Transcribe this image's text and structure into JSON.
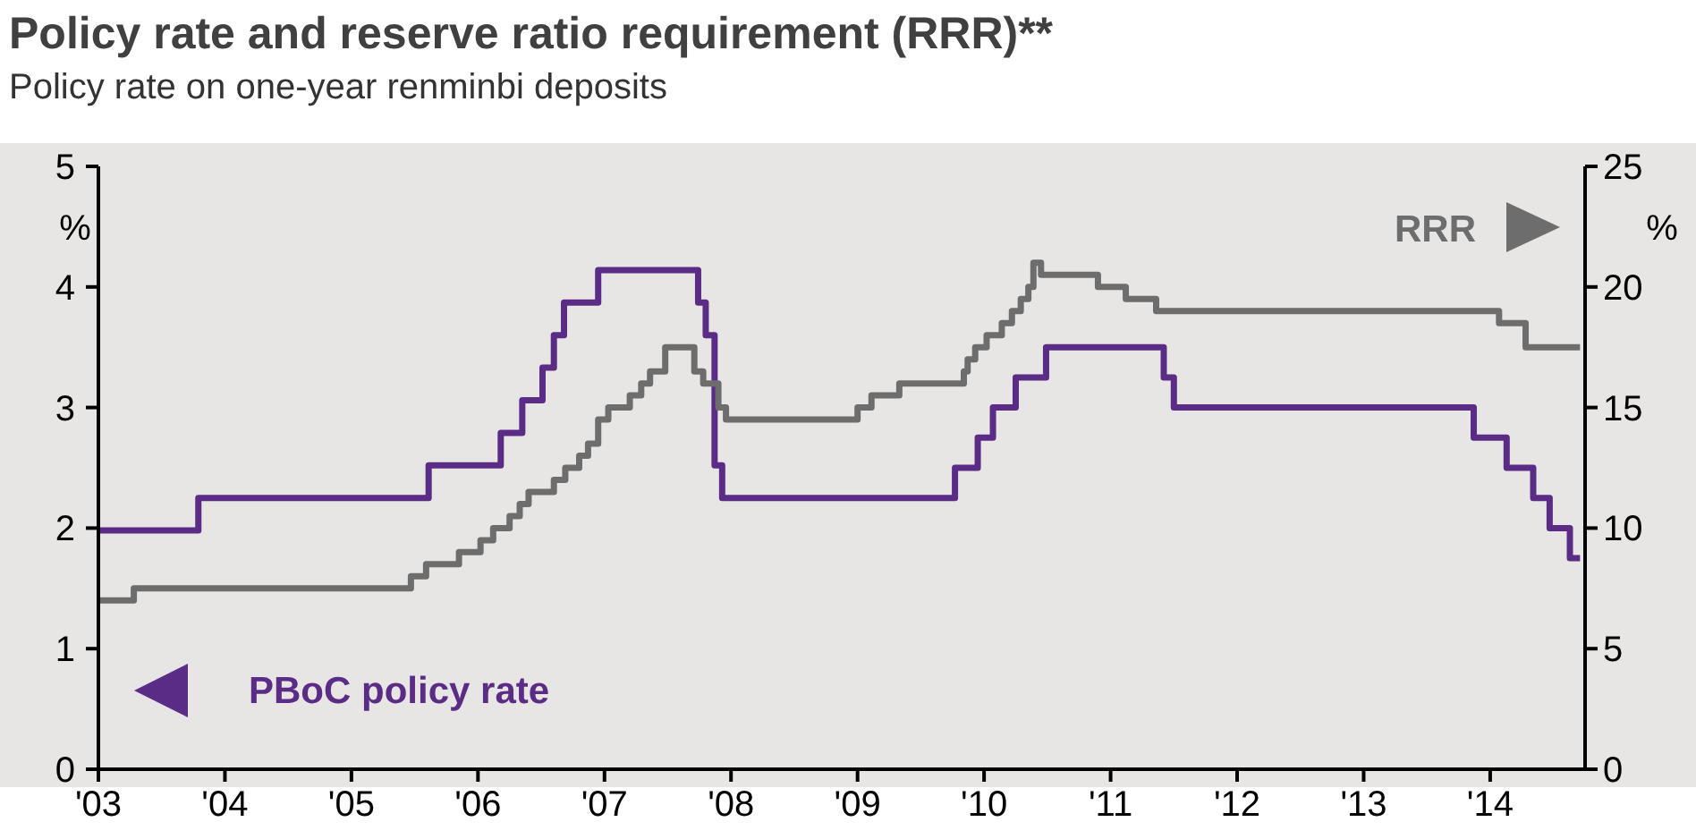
{
  "chart_data": {
    "type": "step",
    "title": "Policy rate and reserve ratio requirement (RRR)**",
    "subtitle": "Policy rate on one-year renminbi deposits",
    "ylabel": "%",
    "y2label": "%",
    "legend": "bottom left",
    "grid": false,
    "xlim": [
      2003,
      2014.75
    ],
    "xticks": [
      {
        "value": 2003,
        "label": "'03"
      },
      {
        "value": 2004,
        "label": "'04"
      },
      {
        "value": 2005,
        "label": "'05"
      },
      {
        "value": 2006,
        "label": "'06"
      },
      {
        "value": 2007,
        "label": "'07"
      },
      {
        "value": 2008,
        "label": "'08"
      },
      {
        "value": 2009,
        "label": "'09"
      },
      {
        "value": 2010,
        "label": "'10"
      },
      {
        "value": 2011,
        "label": "'11"
      },
      {
        "value": 2012,
        "label": "'12"
      },
      {
        "value": 2013,
        "label": "'13"
      },
      {
        "value": 2014,
        "label": "'14"
      }
    ],
    "ylim": [
      0,
      5
    ],
    "yticks": [
      0,
      1,
      2,
      3,
      4,
      5
    ],
    "y2lim": [
      0,
      25
    ],
    "y2ticks": [
      0,
      5,
      10,
      15,
      20,
      25
    ],
    "series": [
      {
        "name": "PBoC policy rate",
        "color": "#5b2c86",
        "x": [
          2003,
          2003.79,
          2005.61,
          2006.18,
          2006.35,
          2006.51,
          2006.6,
          2006.68,
          2006.95,
          2007.74,
          2007.8,
          2007.87,
          2007.93,
          2009.77,
          2009.95,
          2010.07,
          2010.25,
          2010.49,
          2011.42,
          2011.5,
          2013.87,
          2014.13,
          2014.34,
          2014.47,
          2014.63,
          2014.71
        ],
        "values": [
          1.98,
          2.25,
          2.52,
          2.79,
          3.06,
          3.33,
          3.6,
          3.87,
          4.14,
          3.87,
          3.6,
          2.52,
          2.25,
          2.5,
          2.75,
          3,
          3.25,
          3.5,
          3.25,
          3,
          2.75,
          2.5,
          2.25,
          2,
          1.75,
          1.75
        ]
      },
      {
        "name": "RRR",
        "color": "#6d6d6d",
        "axis": "y2",
        "x": [
          2003,
          2003.28,
          2005.47,
          2005.59,
          2005.85,
          2006.02,
          2006.12,
          2006.25,
          2006.33,
          2006.4,
          2006.6,
          2006.69,
          2006.8,
          2006.87,
          2006.95,
          2007.03,
          2007.2,
          2007.29,
          2007.36,
          2007.48,
          2007.71,
          2007.78,
          2007.9,
          2007.96,
          2009,
          2009.11,
          2009.33,
          2009.84,
          2009.87,
          2009.93,
          2010.02,
          2010.14,
          2010.22,
          2010.29,
          2010.35,
          2010.39,
          2010.45,
          2010.9,
          2011.12,
          2011.36,
          2014.07,
          2014.28,
          2014.71
        ],
        "values": [
          7,
          7.5,
          8,
          8.5,
          9,
          9.5,
          10,
          10.5,
          11,
          11.5,
          12,
          12.5,
          13,
          13.5,
          14.5,
          15,
          15.5,
          16,
          16.5,
          17.5,
          16.5,
          16,
          15,
          14.5,
          15,
          15.5,
          16,
          16.5,
          17,
          17.5,
          18,
          18.5,
          19,
          19.5,
          20,
          21,
          20.5,
          20,
          19.5,
          19,
          18.5,
          17.5,
          17.5
        ]
      }
    ]
  }
}
